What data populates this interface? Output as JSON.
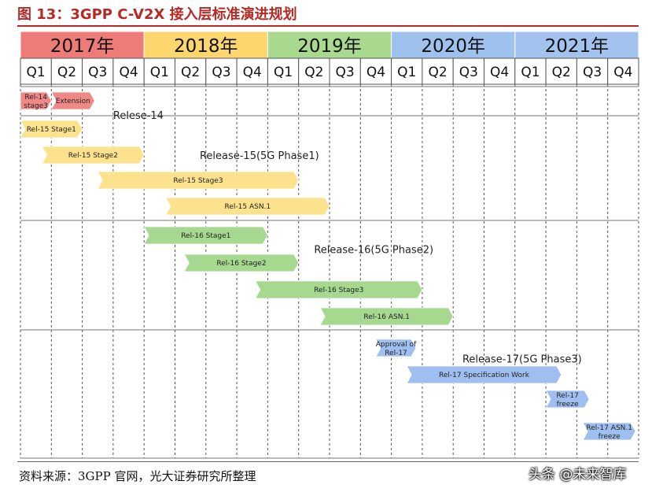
{
  "figure": {
    "title": "图 13：3GPP C-V2X 接入层标准演进规划",
    "source": "资料来源：3GPP 官网，光大证券研究所整理",
    "watermark": "头条 @未来智库"
  },
  "chart_data": {
    "type": "gantt",
    "years": [
      {
        "label": "2017年",
        "color": "#ee7b78"
      },
      {
        "label": "2018年",
        "color": "#fdd76e"
      },
      {
        "label": "2019年",
        "color": "#a8d98e"
      },
      {
        "label": "2020年",
        "color": "#9fc1ee"
      },
      {
        "label": "2021年",
        "color": "#a3c3ee"
      }
    ],
    "quarters": [
      "Q1",
      "Q2",
      "Q3",
      "Q4"
    ],
    "release_groups": [
      {
        "label": "Relese-14",
        "color": "#ef8987",
        "label_start": 3.0,
        "label_row": 0.5
      },
      {
        "label": "Release-15(5G Phase1)",
        "color": "#fde28d",
        "label_start": 5.8,
        "label_row": 2.0
      },
      {
        "label": "Release-16(5G Phase2)",
        "color": "#a6d88f",
        "label_start": 9.5,
        "label_row": 5.5
      },
      {
        "label": "Release-17(5G Phase3)",
        "color": "#9fbff0",
        "label_start": 14.3,
        "label_row": 9.4
      }
    ],
    "tasks": [
      {
        "label": "Rel-14 stage3",
        "group": 0,
        "start": 0.0,
        "end": 1.0,
        "row": 0
      },
      {
        "label": "Extension",
        "group": 0,
        "start": 1.0,
        "end": 2.4,
        "row": 0
      },
      {
        "label": "Rel-15 Stage1",
        "group": 1,
        "start": 0.0,
        "end": 2.0,
        "row": 1
      },
      {
        "label": "Rel-15 Stage2",
        "group": 1,
        "start": 0.7,
        "end": 4.0,
        "row": 2
      },
      {
        "label": "Rel-15 Stage3",
        "group": 1,
        "start": 2.5,
        "end": 9.0,
        "row": 3
      },
      {
        "label": "Rel-15 ASN.1",
        "group": 1,
        "start": 4.7,
        "end": 10.0,
        "row": 4
      },
      {
        "label": "Rel-16 Stage1",
        "group": 2,
        "start": 4.0,
        "end": 8.0,
        "row": 5
      },
      {
        "label": "Rel-16 Stage2",
        "group": 2,
        "start": 5.3,
        "end": 9.0,
        "row": 6
      },
      {
        "label": "Rel-16 Stage3",
        "group": 2,
        "start": 7.6,
        "end": 13.0,
        "row": 7
      },
      {
        "label": "Rel-16 ASN.1",
        "group": 2,
        "start": 9.7,
        "end": 14.0,
        "row": 8
      },
      {
        "label": "Approval of Rel-17",
        "group": 3,
        "start": 11.5,
        "end": 12.8,
        "row": 9
      },
      {
        "label": "Rel-17 Specification Work",
        "group": 3,
        "start": 12.5,
        "end": 17.5,
        "row": 10
      },
      {
        "label": "Rel-17 freeze",
        "group": 3,
        "start": 17.0,
        "end": 18.4,
        "row": 11
      },
      {
        "label": "Rel-17 ASN.1 freeze",
        "group": 3,
        "start": 18.2,
        "end": 19.9,
        "row": 12
      }
    ]
  }
}
